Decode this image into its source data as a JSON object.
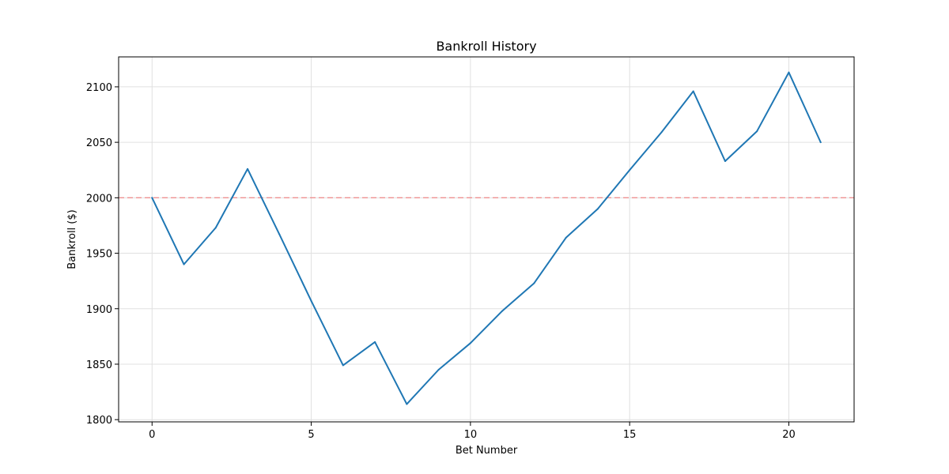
{
  "chart_data": {
    "type": "line",
    "title": "Bankroll History",
    "xlabel": "Bet Number",
    "ylabel": "Bankroll ($)",
    "xlim": [
      -1.05,
      22.05
    ],
    "ylim": [
      1798,
      2127
    ],
    "xticks": [
      0,
      5,
      10,
      15,
      20
    ],
    "yticks": [
      1800,
      1850,
      1900,
      1950,
      2000,
      2050,
      2100
    ],
    "grid": true,
    "reference_line": {
      "y": 2000,
      "style": "dashed",
      "color": "#f08080"
    },
    "series": [
      {
        "color": "#1f77b4",
        "x": [
          0,
          1,
          2,
          3,
          4,
          5,
          6,
          7,
          8,
          9,
          10,
          11,
          12,
          13,
          14,
          15,
          16,
          17,
          18,
          19,
          20,
          21
        ],
        "y": [
          2000,
          1940,
          1973,
          2026,
          1967,
          1907,
          1849,
          1870,
          1814,
          1845,
          1869,
          1898,
          1923,
          1964,
          1990,
          2025,
          2059,
          2096,
          2033,
          2060,
          2113,
          2050
        ]
      }
    ]
  }
}
